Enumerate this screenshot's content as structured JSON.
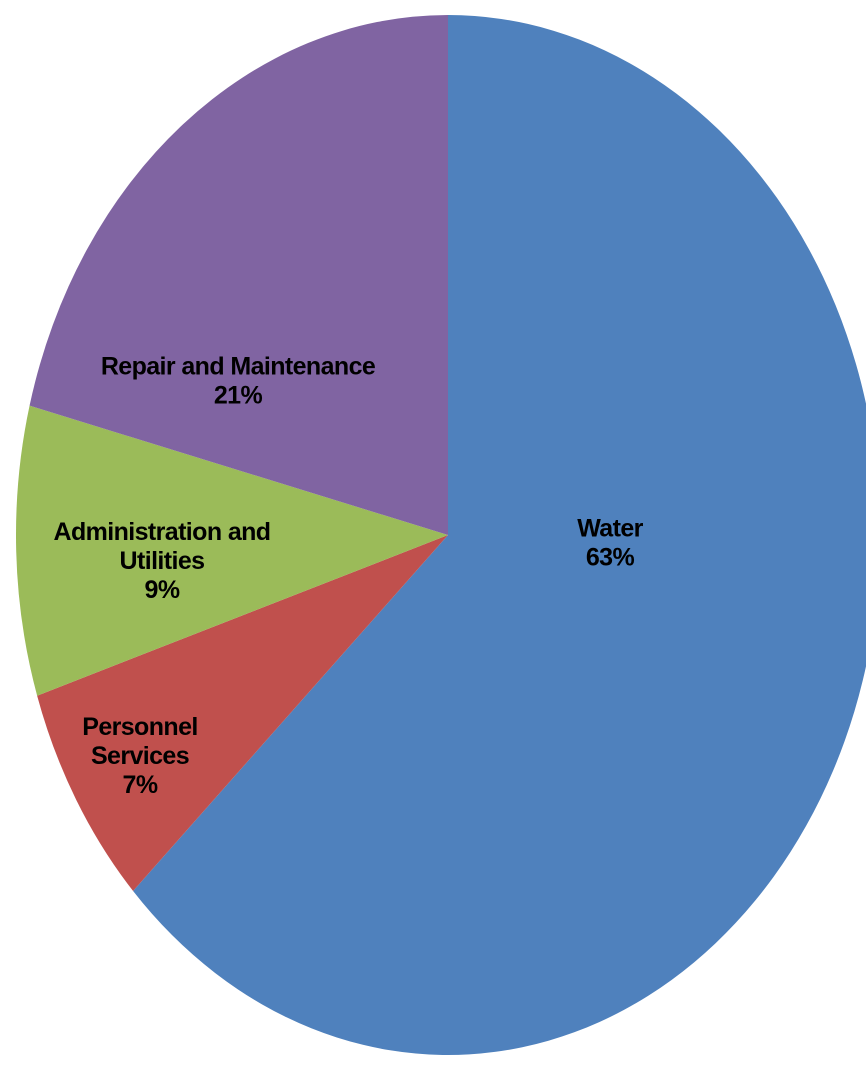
{
  "chart_data": {
    "type": "pie",
    "start_angle_deg": 0,
    "direction": "clockwise",
    "slices": [
      {
        "label_lines": [
          "Water"
        ],
        "percent_label": "63%",
        "value": 63,
        "color": "#4F81BD"
      },
      {
        "label_lines": [
          "Personnel",
          "Services"
        ],
        "percent_label": "7%",
        "value": 7,
        "color": "#C0504D"
      },
      {
        "label_lines": [
          "Administration and",
          "Utilities"
        ],
        "percent_label": "9%",
        "value": 9,
        "color": "#9BBB59"
      },
      {
        "label_lines": [
          "Repair and Maintenance"
        ],
        "percent_label": "21%",
        "value": 21,
        "color": "#8064A2"
      }
    ]
  }
}
